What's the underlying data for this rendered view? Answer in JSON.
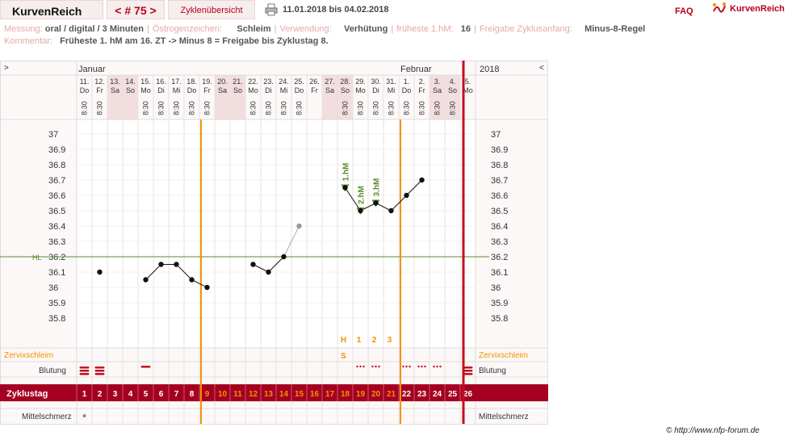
{
  "header": {
    "title": "KurvenReich",
    "cycle_number": "< # 75 >",
    "overview_label": "Zyklenübersicht",
    "date_range": "11.01.2018 bis 04.02.2018",
    "faq_label": "FAQ",
    "logo_text": "KurvenReich",
    "print_icon": "printer-icon",
    "logo_icon": "kurvenreich-logo-icon"
  },
  "meta": {
    "messung_label": "Messung:",
    "messung_value": "oral / digital / 3 Minuten",
    "oestrogen_label": "Östrogenzeichen:",
    "oestrogen_value": "Schleim",
    "verwendung_label": "Verwendung:",
    "verwendung_value": "Verhütung",
    "fhm_label": "früheste 1.hM:",
    "fhm_value": "16",
    "freigabe_label": "Freigabe Zyklusanfang:",
    "freigabe_value": "Minus-8-Regel",
    "kommentar_label": "Kommentar:",
    "kommentar_value": "Früheste 1. hM am 16. ZT -> Minus 8 = Freigabe bis Zyklustag 8."
  },
  "chart_data": {
    "type": "line",
    "nav_left": ">",
    "nav_right": "<",
    "year": "2018",
    "months": [
      {
        "label": "Januar",
        "day_index": 0
      },
      {
        "label": "Februar",
        "day_index": 21
      }
    ],
    "days": [
      "11.",
      "12.",
      "13.",
      "14.",
      "15.",
      "16.",
      "17.",
      "18.",
      "19.",
      "20.",
      "21.",
      "22.",
      "23.",
      "24.",
      "25.",
      "26.",
      "27.",
      "28.",
      "29.",
      "30.",
      "31.",
      "1.",
      "2.",
      "3.",
      "4.",
      "5."
    ],
    "weekdays": [
      "Do",
      "Fr",
      "Sa",
      "So",
      "Mo",
      "Di",
      "Mi",
      "Do",
      "Fr",
      "Sa",
      "So",
      "Mo",
      "Di",
      "Mi",
      "Do",
      "Fr",
      "Sa",
      "So",
      "Mo",
      "Di",
      "Mi",
      "Do",
      "Fr",
      "Sa",
      "So",
      "Mo"
    ],
    "weekend": [
      false,
      false,
      true,
      true,
      false,
      false,
      false,
      false,
      false,
      true,
      true,
      false,
      false,
      false,
      false,
      false,
      true,
      true,
      false,
      false,
      false,
      false,
      false,
      true,
      true,
      false
    ],
    "time_label": "8:30",
    "time_shown": [
      true,
      true,
      false,
      false,
      true,
      true,
      true,
      true,
      true,
      false,
      false,
      true,
      true,
      true,
      true,
      false,
      false,
      true,
      true,
      true,
      true,
      true,
      true,
      true,
      true,
      false
    ],
    "cycle_days": [
      "1",
      "2",
      "3",
      "4",
      "5",
      "6",
      "7",
      "8",
      "9",
      "10",
      "11",
      "12",
      "13",
      "14",
      "15",
      "16",
      "17",
      "18",
      "19",
      "20",
      "21",
      "22",
      "23",
      "24",
      "25",
      "26"
    ],
    "cycle_day_color": [
      "white",
      "white",
      "white",
      "white",
      "white",
      "white",
      "white",
      "white",
      "orange",
      "orange",
      "orange",
      "orange",
      "orange",
      "orange",
      "orange",
      "orange",
      "orange",
      "orange",
      "orange",
      "orange",
      "orange",
      "white",
      "white",
      "white",
      "white",
      "white"
    ],
    "temperatures": [
      null,
      36.1,
      null,
      null,
      36.05,
      36.15,
      36.15,
      36.05,
      36.0,
      null,
      null,
      36.15,
      36.1,
      36.2,
      36.4,
      null,
      null,
      36.65,
      36.5,
      36.55,
      36.5,
      36.6,
      36.7,
      null,
      null,
      null
    ],
    "excluded_index": 14,
    "y_ticks": [
      37,
      36.9,
      36.8,
      36.7,
      36.6,
      36.5,
      36.4,
      36.3,
      36.2,
      36.1,
      36,
      35.9,
      35.8
    ],
    "y_tick_labels": [
      "37",
      "36.9",
      "36.8",
      "36.7",
      "36.6",
      "36.5",
      "36.4",
      "36.3",
      "36.2",
      "36.1",
      "36",
      "35.9",
      "35.8"
    ],
    "ylim": [
      35.8,
      37.0
    ],
    "hl_value": 36.2,
    "hl_label": "HL",
    "hm_markers": [
      {
        "index": 17,
        "label": "1.hM"
      },
      {
        "index": 18,
        "label": "2.hM"
      },
      {
        "index": 19,
        "label": "3.hM"
      }
    ],
    "mucus_labels": [
      {
        "index": 17,
        "text": "H"
      },
      {
        "index": 18,
        "text": "1"
      },
      {
        "index": 19,
        "text": "2"
      },
      {
        "index": 20,
        "text": "3"
      },
      {
        "index": 17,
        "text": "S",
        "row": "mucus"
      }
    ],
    "orange_lines": [
      8,
      21
    ],
    "red_line_index": 25,
    "bleeding": {
      "heavy": [
        0,
        1,
        25
      ],
      "medium": [
        4
      ],
      "spotting": [
        18,
        19,
        21,
        22,
        23
      ]
    },
    "row_labels": {
      "zervix": "Zervixschleim",
      "blutung": "Blutung",
      "zyklustag": "Zyklustag",
      "mittelschmerz": "Mittelschmerz"
    },
    "mittelschmerz_dot_index": 0
  },
  "footer": {
    "copyright": "© http://www.nfp-forum.de"
  },
  "colors": {
    "accent": "#a50021",
    "orange": "#f39200",
    "green": "#5c8a2e",
    "red_line": "#c40d1e",
    "weekend": "#f2dedf"
  }
}
